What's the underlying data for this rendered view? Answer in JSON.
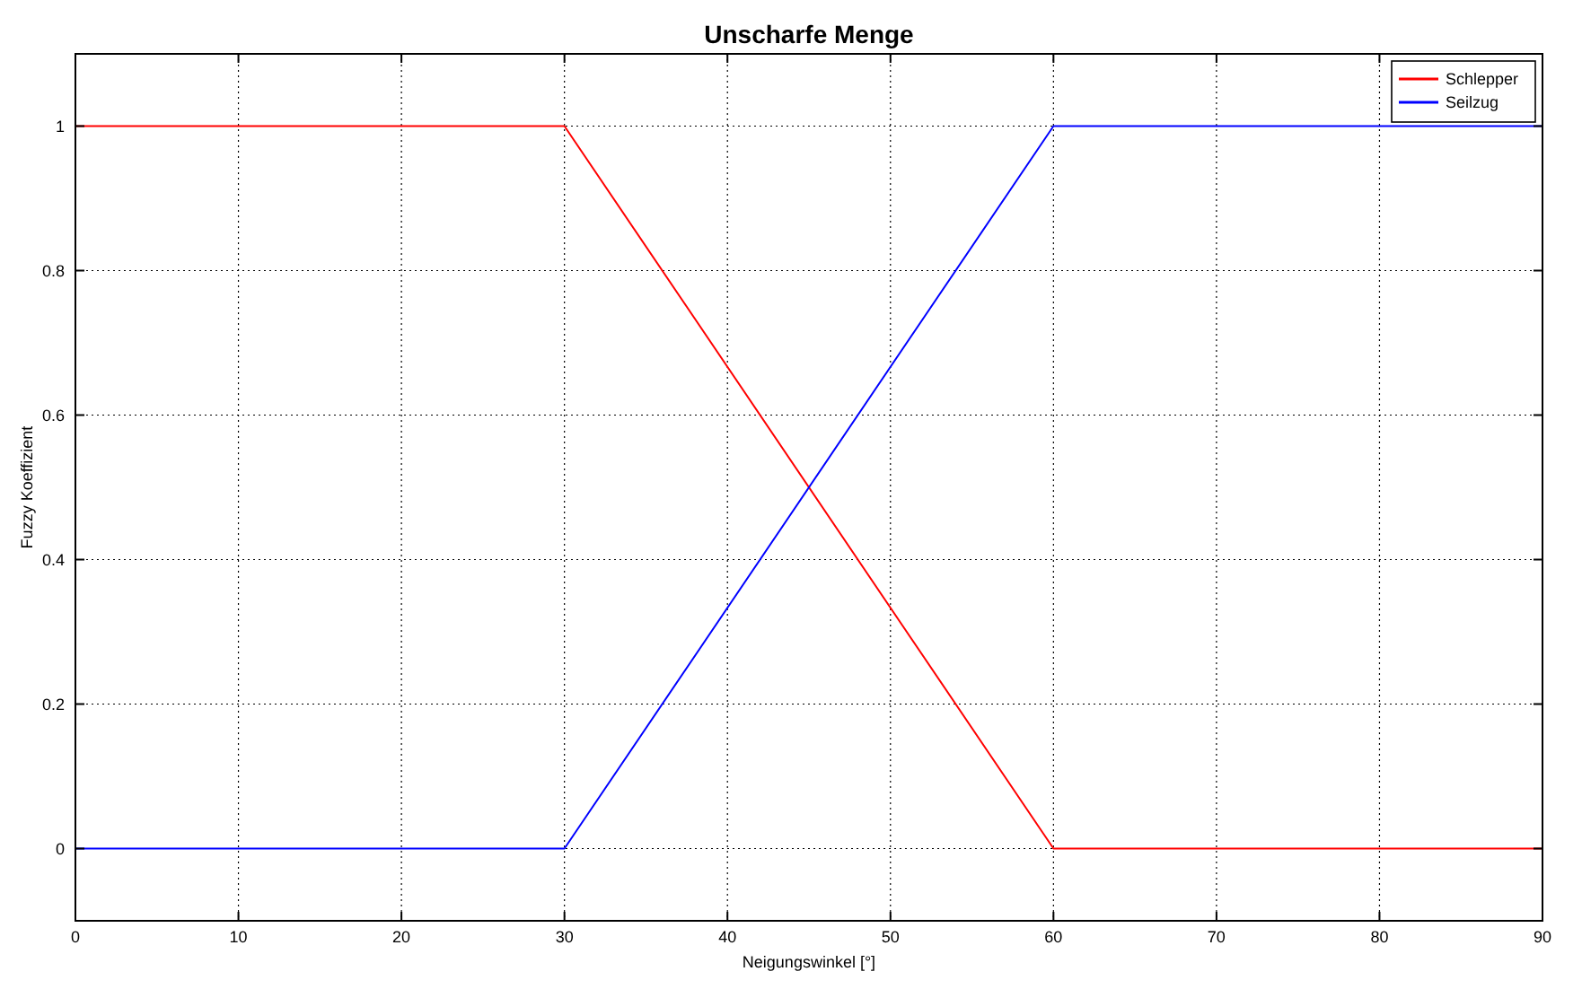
{
  "chart_data": {
    "type": "line",
    "title": "Unscharfe Menge",
    "xlabel": "Neigungswinkel [°]",
    "ylabel": "Fuzzy Koeffizient",
    "x": [
      0,
      30,
      60,
      90
    ],
    "series": [
      {
        "name": "Schlepper",
        "color": "#ff0000",
        "values": [
          1,
          1,
          0,
          0
        ]
      },
      {
        "name": "Seilzug",
        "color": "#0000ff",
        "values": [
          0,
          0,
          1,
          1
        ]
      }
    ],
    "xlim": [
      0,
      90
    ],
    "xticks": [
      0,
      10,
      20,
      30,
      40,
      50,
      60,
      70,
      80,
      90
    ],
    "ylim": [
      -0.1,
      1.1
    ],
    "yticks": [
      0,
      0.2,
      0.4,
      0.6,
      0.8,
      1
    ],
    "grid": true,
    "legend": "top right",
    "line_style": "solid"
  }
}
